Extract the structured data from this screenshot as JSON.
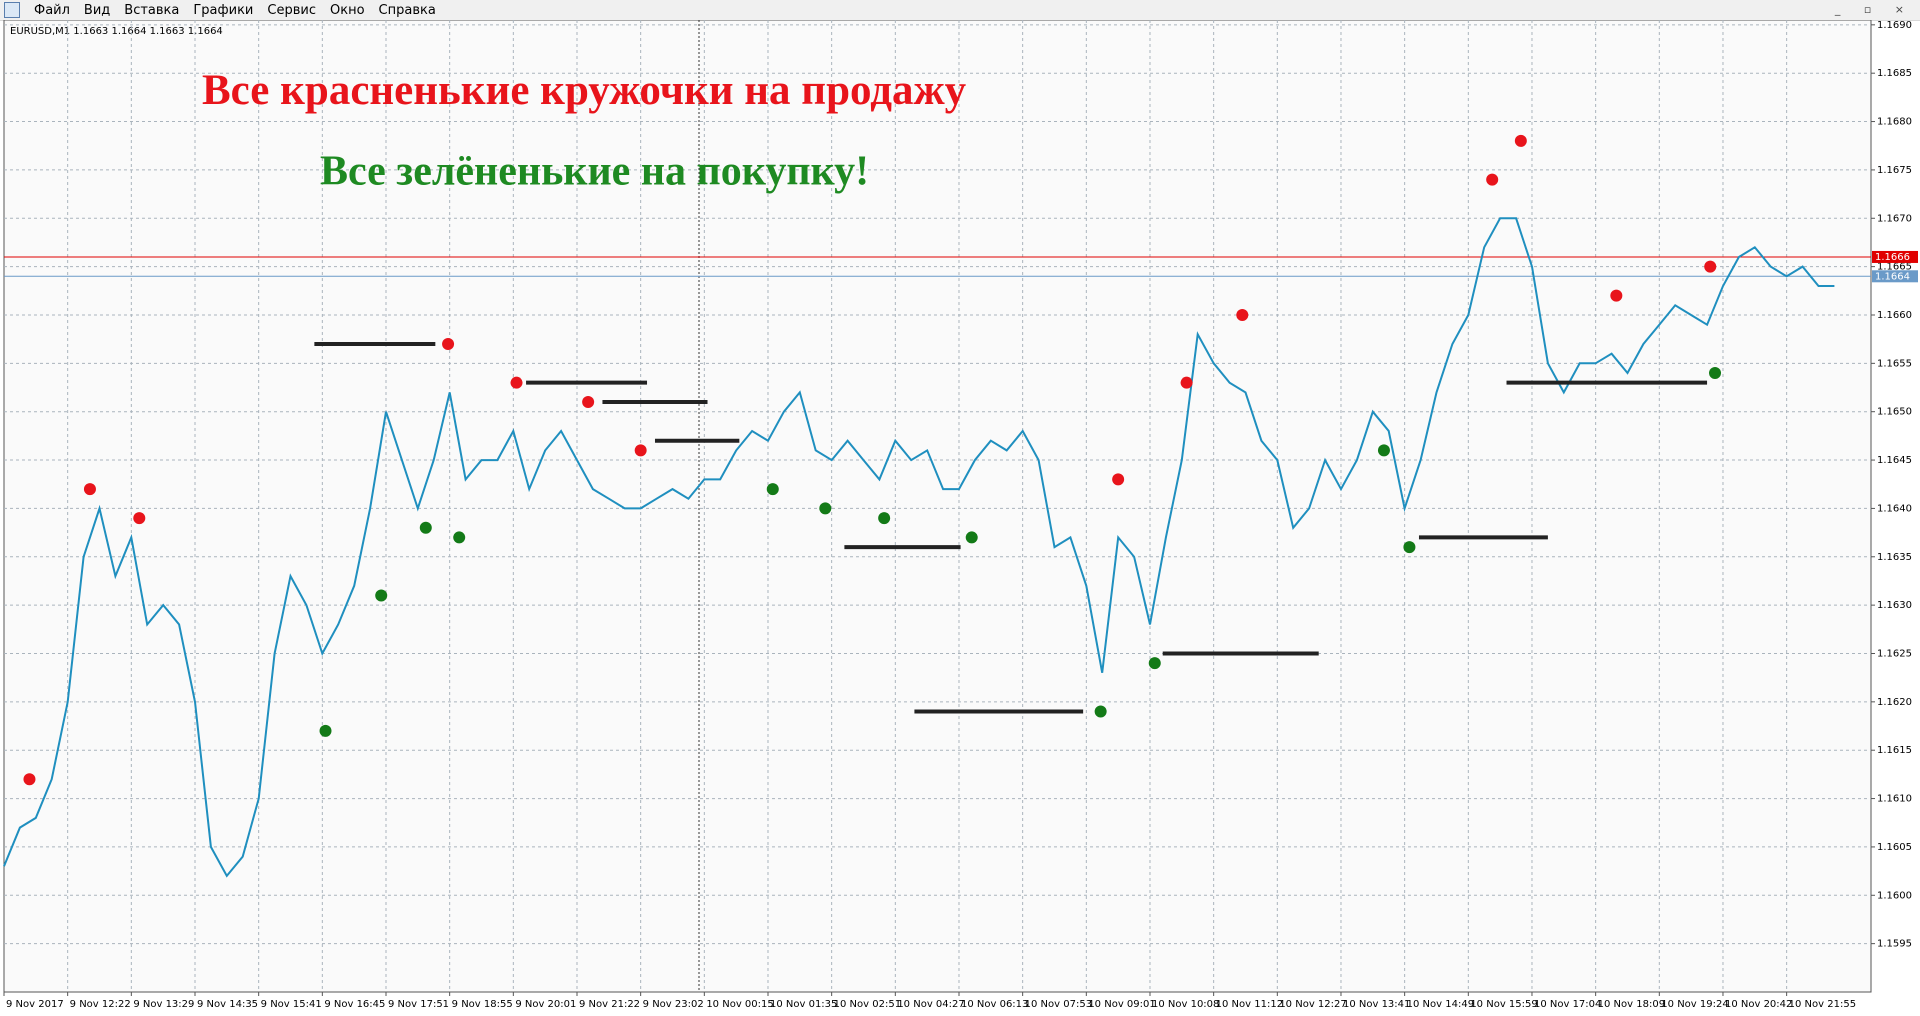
{
  "menu": [
    "Файл",
    "Вид",
    "Вставка",
    "Графики",
    "Сервис",
    "Окно",
    "Справка"
  ],
  "chart_data": {
    "type": "line",
    "header": "EURUSD,M1  1.1663 1.1664 1.1663 1.1664",
    "annotations": [
      {
        "text": "Все красненькие кружочки на продажу",
        "color": "#e8141b"
      },
      {
        "text": "Все зелёненькие на покупку!",
        "color": "#1e8a22"
      }
    ],
    "categories": [
      "9 Nov 2017",
      null,
      null,
      null,
      "9 Nov 12:22",
      null,
      null,
      null,
      "9 Nov 13:29",
      null,
      null,
      null,
      "9 Nov 14:35",
      null,
      null,
      null,
      "9 Nov 15:41",
      null,
      null,
      null,
      "9 Nov 16:45",
      null,
      null,
      null,
      "9 Nov 17:51",
      null,
      null,
      null,
      "9 Nov 18:55",
      null,
      null,
      null,
      "9 Nov 20:01",
      null,
      null,
      null,
      "9 Nov 21:22",
      null,
      null,
      null,
      "9 Nov 23:02",
      null,
      null,
      null,
      "10 Nov 00:15",
      null,
      null,
      null,
      "10 Nov 01:35",
      null,
      null,
      null,
      "10 Nov 02:51",
      null,
      null,
      null,
      "10 Nov 04:27",
      null,
      null,
      null,
      "10 Nov 06:13",
      null,
      null,
      null,
      "10 Nov 07:53",
      null,
      null,
      null,
      "10 Nov 09:01",
      null,
      null,
      null,
      "10 Nov 10:08",
      null,
      null,
      null,
      "10 Nov 11:12",
      null,
      null,
      null,
      "10 Nov 12:27",
      null,
      null,
      null,
      "10 Nov 13:41",
      null,
      null,
      null,
      "10 Nov 14:49",
      null,
      null,
      null,
      "10 Nov 15:59",
      null,
      null,
      null,
      "10 Nov 17:04",
      null,
      null,
      null,
      "10 Nov 18:09",
      null,
      null,
      null,
      "10 Nov 19:24",
      null,
      null,
      null,
      "10 Nov 20:42",
      null,
      null,
      null,
      "10 Nov 21:55",
      null,
      null,
      null
    ],
    "series": [
      {
        "color": "#1f8fbf",
        "values": [
          1.1603,
          1.1607,
          1.1608,
          1.1612,
          1.162,
          1.1635,
          1.164,
          1.1633,
          1.1637,
          1.1628,
          1.163,
          1.1628,
          1.162,
          1.1605,
          1.1602,
          1.1604,
          1.161,
          1.1625,
          1.1633,
          1.163,
          1.1625,
          1.1628,
          1.1632,
          1.164,
          1.165,
          1.1645,
          1.164,
          1.1645,
          1.1652,
          1.1643,
          1.1645,
          1.1645,
          1.1648,
          1.1642,
          1.1646,
          1.1648,
          1.1645,
          1.1642,
          1.1641,
          1.164,
          1.164,
          1.1641,
          1.1642,
          1.1641,
          1.1643,
          1.1643,
          1.1646,
          1.1648,
          1.1647,
          1.165,
          1.1652,
          1.1646,
          1.1645,
          1.1647,
          1.1645,
          1.1643,
          1.1647,
          1.1645,
          1.1646,
          1.1642,
          1.1642,
          1.1645,
          1.1647,
          1.1646,
          1.1648,
          1.1645,
          1.1636,
          1.1637,
          1.1632,
          1.1623,
          1.1637,
          1.1635,
          1.1628,
          1.1637,
          1.1645,
          1.1658,
          1.1655,
          1.1653,
          1.1652,
          1.1647,
          1.1645,
          1.1638,
          1.164,
          1.1645,
          1.1642,
          1.1645,
          1.165,
          1.1648,
          1.164,
          1.1645,
          1.1652,
          1.1657,
          1.166,
          1.1667,
          1.167,
          1.167,
          1.1665,
          1.1655,
          1.1652,
          1.1655,
          1.1655,
          1.1656,
          1.1654,
          1.1657,
          1.1659,
          1.1661,
          1.166,
          1.1659,
          1.1663,
          1.1666,
          1.1667,
          1.1665,
          1.1664,
          1.1665,
          1.1663,
          1.1663
        ]
      }
    ],
    "markers": [
      {
        "color": "#e8141b",
        "x": [
          1.6,
          5.4,
          8.5,
          27.9,
          32.2,
          36.7,
          40,
          70,
          74.3,
          77.8,
          93.5,
          95.3,
          101.3,
          107.2
        ],
        "values": [
          1.1612,
          1.1642,
          1.1639,
          1.1657,
          1.1653,
          1.1651,
          1.1646,
          1.1643,
          1.1653,
          1.166,
          1.1674,
          1.1678,
          1.1662,
          1.1665
        ]
      },
      {
        "color": "#137a17",
        "x": [
          20.2,
          23.7,
          26.5,
          28.6,
          48.3,
          51.6,
          55.3,
          60.8,
          68.9,
          72.3,
          86.7,
          88.3,
          107.5
        ],
        "values": [
          1.1617,
          1.1631,
          1.1638,
          1.1637,
          1.1642,
          1.164,
          1.1639,
          1.1637,
          1.1619,
          1.1624,
          1.1646,
          1.1636,
          1.1654
        ]
      }
    ],
    "level_color": "#222222",
    "levels": [
      {
        "x": [
          19.5,
          27.1
        ],
        "value": 1.1657
      },
      {
        "x": [
          32.8,
          40.4
        ],
        "value": 1.1653
      },
      {
        "x": [
          37.6,
          44.2
        ],
        "value": 1.1651
      },
      {
        "x": [
          40.9,
          46.2
        ],
        "value": 1.1647
      },
      {
        "x": [
          52.8,
          60.1
        ],
        "value": 1.1636
      },
      {
        "x": [
          57.2,
          67.8
        ],
        "value": 1.1619
      },
      {
        "x": [
          72.8,
          82.6
        ],
        "value": 1.1625
      },
      {
        "x": [
          88.9,
          97
        ],
        "value": 1.1637
      },
      {
        "x": [
          94.4,
          107
        ],
        "value": 1.1653
      }
    ],
    "hlines": [
      {
        "value": 1.1666,
        "color": "#e00000"
      },
      {
        "value": 1.1664,
        "color": "#6a9ac8"
      }
    ],
    "xlim": [
      0,
      117.3
    ],
    "ylim": [
      1.159,
      1.16905
    ],
    "yticks": [
      1.1595,
      {
        "value": 1.16,
        "label": "1.1600"
      },
      1.1605,
      {
        "value": 1.161,
        "label": "1.1610"
      },
      1.1615,
      {
        "value": 1.162,
        "label": "1.1620"
      },
      1.1625,
      {
        "value": 1.163,
        "label": "1.1630"
      },
      1.1635,
      {
        "value": 1.164,
        "label": "1.1640"
      },
      1.1645,
      {
        "value": 1.165,
        "label": "1.1650"
      },
      1.1655,
      {
        "value": 1.166,
        "label": "1.1660"
      },
      1.1665,
      {
        "value": 1.167,
        "label": "1.1670"
      },
      1.1675,
      {
        "value": 1.168,
        "label": "1.1680"
      },
      1.1685,
      {
        "value": 1.169,
        "label": "1.1690"
      }
    ],
    "grid": true
  }
}
